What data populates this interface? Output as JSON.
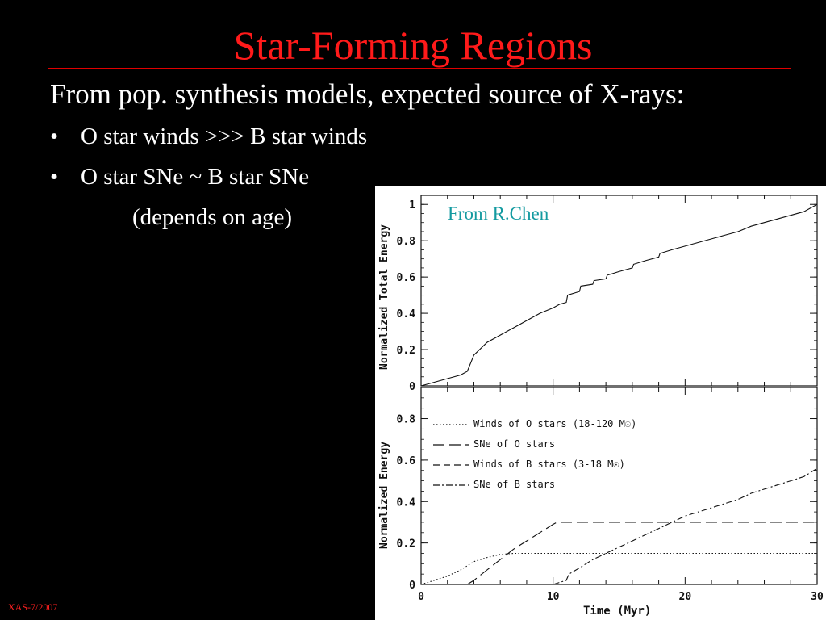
{
  "slide": {
    "title": "Star-Forming Regions",
    "intro": "From pop. synthesis models, expected source of X-rays:",
    "bullets": [
      {
        "marker": "•",
        "text": "O star winds >>> B star winds"
      },
      {
        "marker": "•",
        "text": "O star SNe ~ B star SNe"
      }
    ],
    "note": "(depends on age)",
    "footer": "XAS-7/2007",
    "credit": "From R.Chen",
    "colors": {
      "background": "#000000",
      "title": "#ff1a1a",
      "text": "#ffffff",
      "credit": "#139aa0"
    }
  },
  "chart_data": [
    {
      "type": "line",
      "title": "",
      "xlabel": "",
      "ylabel": "Normalized Total Energy",
      "xlim": [
        0,
        30
      ],
      "ylim": [
        0,
        1.05
      ],
      "y_ticks": [
        "0",
        "0.2",
        "0.4",
        "0.6",
        "0.8",
        "1"
      ],
      "series": [
        {
          "style": "solid",
          "x": [
            0,
            1,
            2,
            3,
            3.5,
            4,
            5,
            6,
            7,
            8,
            9,
            10,
            10.5,
            11,
            11.1,
            12,
            12.1,
            13,
            13.1,
            14,
            14.1,
            15,
            16,
            16.1,
            17,
            18,
            18.1,
            19,
            20,
            21,
            22,
            23,
            24,
            25,
            26,
            27,
            28,
            29,
            30
          ],
          "y": [
            0,
            0.02,
            0.04,
            0.06,
            0.08,
            0.17,
            0.24,
            0.28,
            0.32,
            0.36,
            0.4,
            0.43,
            0.45,
            0.46,
            0.5,
            0.52,
            0.55,
            0.56,
            0.58,
            0.59,
            0.61,
            0.63,
            0.65,
            0.67,
            0.69,
            0.71,
            0.73,
            0.75,
            0.77,
            0.79,
            0.81,
            0.83,
            0.85,
            0.88,
            0.9,
            0.92,
            0.94,
            0.96,
            1.0
          ]
        }
      ]
    },
    {
      "type": "line",
      "title": "",
      "xlabel": "Time (Myr)",
      "ylabel": "Normalized Energy",
      "xlim": [
        0,
        30
      ],
      "ylim": [
        0,
        0.95
      ],
      "x_ticks": [
        "0",
        "10",
        "20",
        "30"
      ],
      "y_ticks": [
        "0",
        "0.2",
        "0.4",
        "0.6",
        "0.8"
      ],
      "series": [
        {
          "name": "Winds of O stars (18-120 M☉)",
          "style": "dotted",
          "x": [
            0,
            1,
            2,
            3,
            4,
            5,
            6,
            7,
            8,
            10,
            15,
            20,
            25,
            30
          ],
          "y": [
            0,
            0.02,
            0.04,
            0.07,
            0.11,
            0.13,
            0.145,
            0.15,
            0.15,
            0.15,
            0.15,
            0.15,
            0.15,
            0.15
          ]
        },
        {
          "name": "SNe of O stars",
          "style": "longdash",
          "x": [
            3.5,
            4,
            5,
            6,
            7,
            8,
            9,
            10,
            10.3,
            15,
            20,
            25,
            30
          ],
          "y": [
            0,
            0.02,
            0.07,
            0.12,
            0.17,
            0.21,
            0.25,
            0.29,
            0.3,
            0.3,
            0.3,
            0.3,
            0.3
          ]
        },
        {
          "name": "Winds of B stars (3-18 M☉)",
          "style": "dashed",
          "x": [
            0,
            30
          ],
          "y": [
            0,
            0
          ]
        },
        {
          "name": "SNe of B stars",
          "style": "dashdot",
          "x": [
            10,
            11,
            11.2,
            12,
            13,
            14,
            15,
            16,
            17,
            18,
            19,
            20,
            21,
            22,
            23,
            24,
            25,
            26,
            27,
            28,
            29,
            30
          ],
          "y": [
            0,
            0.02,
            0.05,
            0.08,
            0.12,
            0.15,
            0.18,
            0.21,
            0.24,
            0.27,
            0.3,
            0.33,
            0.35,
            0.37,
            0.39,
            0.41,
            0.44,
            0.46,
            0.48,
            0.5,
            0.52,
            0.56
          ]
        }
      ]
    }
  ]
}
